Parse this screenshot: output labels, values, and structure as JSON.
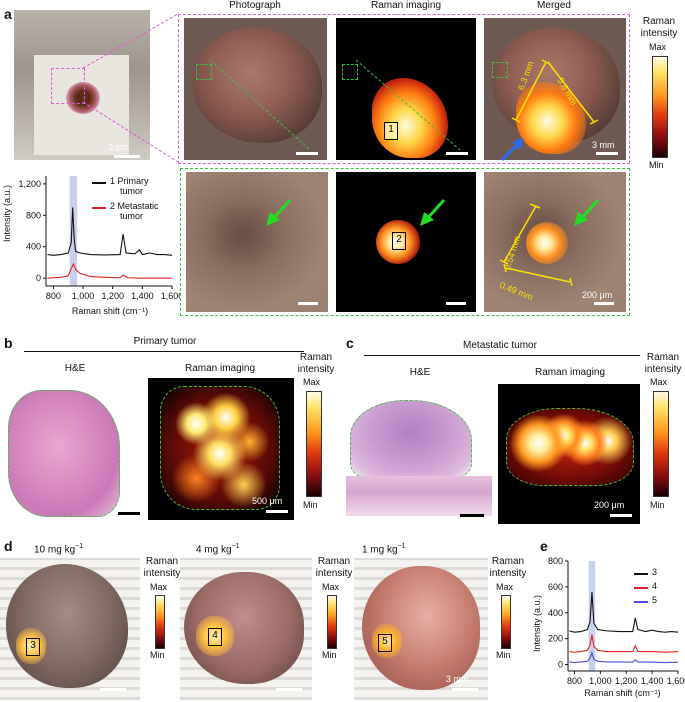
{
  "panels": {
    "a": "a",
    "b": "b",
    "c": "c",
    "d": "d",
    "e": "e"
  },
  "a": {
    "columns": [
      "Photograph",
      "Raman imaging",
      "Merged"
    ],
    "colorbar": {
      "title_line1": "Raman",
      "title_line2": "intensity",
      "max": "Max",
      "min": "Min"
    },
    "scale_overview": "2 cm",
    "scale_merged": "3 mm",
    "scale_zoom": "200 μm",
    "measure_top": [
      "6.3 mm",
      "5.8 mm"
    ],
    "measure_zoom": [
      "0.54 mm",
      "0.49 mm"
    ],
    "roi_top": "1",
    "roi_zoom": "2",
    "colors": {
      "dash_magenta": "#e05ad8",
      "dash_green": "#3fbf3f",
      "arrow_green": "#22dd22",
      "arrow_blue": "#2a6cf0",
      "measure": "#ffe000"
    }
  },
  "spectrum_a": {
    "ylabel": "Intensity (a.u.)",
    "xlabel": "Raman shift (cm⁻¹)",
    "yticks": [
      "0",
      "400",
      "800",
      "1,200"
    ],
    "xticks": [
      "800",
      "1,000",
      "1,200",
      "1,400",
      "1,600"
    ],
    "legend": [
      "1 Primary",
      "tumor",
      "2 Metastatic",
      "tumor"
    ]
  },
  "b": {
    "header": "Primary tumor",
    "left": "H&E",
    "right": "Raman imaging",
    "scale": "500 μm",
    "colorbar": {
      "title_line1": "Raman",
      "title_line2": "intensity",
      "max": "Max",
      "min": "Min"
    }
  },
  "c": {
    "header": "Metastatic tumor",
    "left": "H&E",
    "right": "Raman imaging",
    "scale": "200 μm",
    "colorbar": {
      "title_line1": "Raman",
      "title_line2": "intensity",
      "max": "Max",
      "min": "Min"
    }
  },
  "d": {
    "doses": [
      {
        "value": "10 mg kg",
        "exp": "−1",
        "roi": "3"
      },
      {
        "value": "4 mg kg",
        "exp": "−1",
        "roi": "4"
      },
      {
        "value": "1 mg kg",
        "exp": "−1",
        "roi": "5"
      }
    ],
    "colorbar": {
      "title_line1": "Raman",
      "title_line2": "intensity",
      "max": "Max",
      "min": "Min"
    },
    "scale": "3 mm"
  },
  "spectrum_e": {
    "ylabel": "Intensity (a.u.)",
    "xlabel": "Raman shift (cm⁻¹)",
    "yticks": [
      "0",
      "200",
      "400",
      "600",
      "800"
    ],
    "xticks": [
      "800",
      "1,000",
      "1,200",
      "1,400",
      "1,600"
    ],
    "legend": [
      "3",
      "4",
      "5"
    ]
  },
  "chart_data": [
    {
      "type": "line",
      "xlabel": "Raman shift (cm⁻¹)",
      "ylabel": "Intensity (a.u.)",
      "xlim": [
        750,
        1600
      ],
      "ylim": [
        -100,
        1300
      ],
      "highlight_band": [
        910,
        960
      ],
      "series": [
        {
          "name": "1 Primary tumor",
          "color": "#111111",
          "x": [
            760,
            800,
            850,
            900,
            920,
            930,
            940,
            950,
            980,
            1050,
            1150,
            1250,
            1270,
            1290,
            1350,
            1380,
            1400,
            1450,
            1500,
            1550,
            1600
          ],
          "y": [
            300,
            290,
            300,
            320,
            450,
            900,
            500,
            340,
            320,
            300,
            295,
            300,
            560,
            320,
            310,
            360,
            300,
            320,
            300,
            300,
            290
          ]
        },
        {
          "name": "2 Metastatic tumor",
          "color": "#e02020",
          "x": [
            760,
            800,
            850,
            900,
            920,
            935,
            950,
            980,
            1050,
            1150,
            1250,
            1270,
            1300,
            1400,
            1500,
            1600
          ],
          "y": [
            0,
            5,
            10,
            30,
            120,
            180,
            110,
            60,
            20,
            10,
            5,
            40,
            5,
            0,
            0,
            0
          ]
        }
      ]
    },
    {
      "type": "line",
      "xlabel": "Raman shift (cm⁻¹)",
      "ylabel": "Intensity (a.u.)",
      "xlim": [
        750,
        1600
      ],
      "ylim": [
        -50,
        800
      ],
      "highlight_band": [
        910,
        960
      ],
      "series": [
        {
          "name": "3",
          "color": "#111111",
          "x": [
            760,
            800,
            850,
            900,
            920,
            935,
            950,
            980,
            1050,
            1150,
            1250,
            1270,
            1290,
            1350,
            1400,
            1450,
            1500,
            1550,
            1600
          ],
          "y": [
            260,
            250,
            255,
            270,
            330,
            560,
            320,
            270,
            260,
            255,
            255,
            360,
            270,
            255,
            265,
            255,
            250,
            255,
            250
          ]
        },
        {
          "name": "4",
          "color": "#e02020",
          "x": [
            760,
            800,
            850,
            900,
            920,
            935,
            950,
            980,
            1050,
            1150,
            1250,
            1270,
            1290,
            1400,
            1500,
            1600
          ],
          "y": [
            100,
            95,
            100,
            110,
            150,
            230,
            140,
            110,
            100,
            100,
            100,
            145,
            100,
            100,
            95,
            100
          ]
        },
        {
          "name": "5",
          "color": "#4a4ad8",
          "x": [
            760,
            800,
            850,
            900,
            920,
            935,
            950,
            980,
            1050,
            1150,
            1250,
            1270,
            1290,
            1400,
            1500,
            1600
          ],
          "y": [
            20,
            15,
            20,
            25,
            50,
            90,
            40,
            25,
            20,
            20,
            18,
            35,
            20,
            18,
            15,
            18
          ]
        }
      ]
    }
  ]
}
